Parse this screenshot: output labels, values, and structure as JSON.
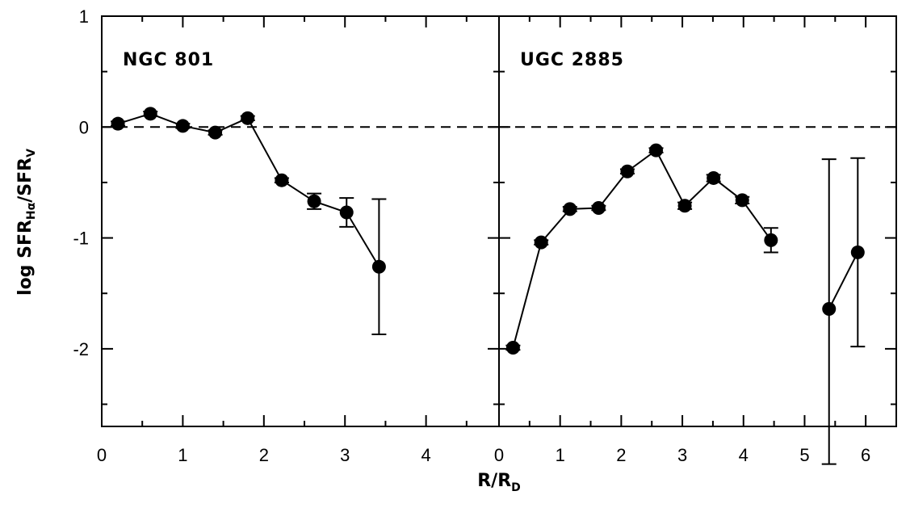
{
  "chart_data": [
    {
      "type": "scatter",
      "panel_label": "NGC 801",
      "xlabel": "R/R_D",
      "ylabel": "log SFR_Hα/SFR_V",
      "xlim": [
        0,
        4.9
      ],
      "ylim": [
        -2.7,
        1.0
      ],
      "xticks": [
        "0",
        "1",
        "2",
        "3",
        "4"
      ],
      "yticks": [
        "1",
        "0",
        "-1",
        "-2"
      ],
      "reference_line": {
        "y": 0,
        "style": "dashed"
      },
      "series": [
        {
          "connected": true,
          "x": [
            0.2,
            0.6,
            1.0,
            1.4,
            1.8,
            2.22,
            2.62,
            3.02,
            3.42
          ],
          "y": [
            0.03,
            0.12,
            0.01,
            -0.05,
            0.08,
            -0.48,
            -0.67,
            -0.77,
            -1.26
          ],
          "err_low": [
            0.02,
            0.02,
            0.02,
            0.02,
            0.02,
            0.02,
            0.07,
            0.13,
            0.61
          ],
          "err_high": [
            0.02,
            0.02,
            0.02,
            0.02,
            0.02,
            0.02,
            0.07,
            0.13,
            0.61
          ]
        }
      ]
    },
    {
      "type": "scatter",
      "panel_label": "UGC 2885",
      "xlabel": "R/R_D",
      "xlim": [
        0,
        6.5
      ],
      "ylim": [
        -2.7,
        1.0
      ],
      "xticks": [
        "0",
        "1",
        "2",
        "3",
        "4",
        "5",
        "6"
      ],
      "reference_line": {
        "y": 0,
        "style": "dashed"
      },
      "series": [
        {
          "connected": true,
          "x": [
            0.23,
            0.69,
            1.16,
            1.63,
            2.1,
            2.57,
            3.04,
            3.51,
            3.98,
            4.45
          ],
          "y": [
            -1.99,
            -1.04,
            -0.74,
            -0.73,
            -0.4,
            -0.21,
            -0.71,
            -0.46,
            -0.66,
            -1.02
          ],
          "err_low": [
            0.02,
            0.02,
            0.02,
            0.02,
            0.02,
            0.02,
            0.03,
            0.03,
            0.03,
            0.11
          ],
          "err_high": [
            0.02,
            0.02,
            0.02,
            0.02,
            0.02,
            0.02,
            0.03,
            0.03,
            0.03,
            0.11
          ]
        },
        {
          "connected": true,
          "x": [
            5.4,
            5.87
          ],
          "y": [
            -1.64,
            -1.13
          ],
          "err_low": [
            1.4,
            0.85
          ],
          "err_high": [
            1.35,
            0.85
          ]
        }
      ]
    }
  ]
}
